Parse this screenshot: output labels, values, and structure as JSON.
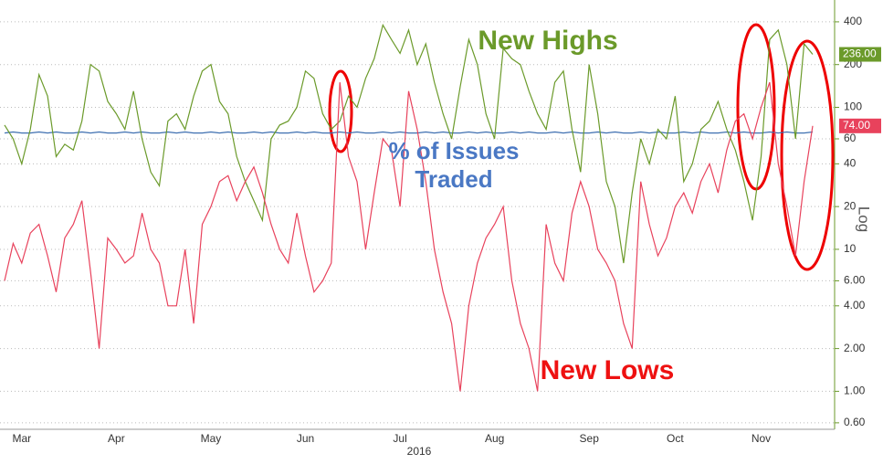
{
  "chart_data": {
    "type": "line",
    "x_label": "2016",
    "y_label": "Log",
    "log_scale": true,
    "grid": true,
    "categories": [
      null,
      null,
      "Mar",
      null,
      null,
      null,
      null,
      null,
      null,
      null,
      null,
      null,
      null,
      "Apr",
      null,
      null,
      null,
      null,
      null,
      null,
      null,
      null,
      null,
      null,
      "May",
      null,
      null,
      null,
      null,
      null,
      null,
      null,
      null,
      null,
      null,
      "Jun",
      null,
      null,
      null,
      null,
      null,
      null,
      null,
      null,
      null,
      null,
      "Jul",
      null,
      null,
      null,
      null,
      null,
      null,
      null,
      null,
      null,
      null,
      "Aug",
      null,
      null,
      null,
      null,
      null,
      null,
      null,
      null,
      null,
      null,
      "Sep",
      null,
      null,
      null,
      null,
      null,
      null,
      null,
      null,
      null,
      "Oct",
      null,
      null,
      null,
      null,
      null,
      null,
      null,
      null,
      null,
      "Nov",
      null,
      null,
      null,
      null,
      null,
      null
    ],
    "series": [
      {
        "name": "New Highs",
        "color": "#6b9a2a",
        "last_label": "236.00",
        "values": [
          75,
          60,
          40,
          70,
          170,
          120,
          45,
          55,
          50,
          80,
          200,
          180,
          110,
          90,
          70,
          130,
          60,
          35,
          28,
          80,
          90,
          70,
          120,
          180,
          200,
          110,
          90,
          45,
          30,
          22,
          16,
          60,
          75,
          80,
          100,
          180,
          160,
          90,
          70,
          80,
          120,
          100,
          160,
          220,
          380,
          300,
          240,
          350,
          200,
          280,
          150,
          90,
          60,
          140,
          300,
          200,
          90,
          60,
          260,
          220,
          200,
          130,
          90,
          70,
          150,
          180,
          70,
          35,
          200,
          90,
          30,
          20,
          8,
          25,
          60,
          40,
          70,
          60,
          120,
          30,
          40,
          70,
          80,
          110,
          70,
          50,
          30,
          16,
          45,
          300,
          350,
          200,
          60,
          280,
          236
        ]
      },
      {
        "name": "New Lows",
        "color": "#e8425c",
        "last_label": "74.00",
        "values": [
          6,
          11,
          8,
          13,
          15,
          9,
          5,
          12,
          15,
          22,
          7,
          2,
          12,
          10,
          8,
          9,
          18,
          10,
          8,
          4,
          4,
          10,
          3,
          15,
          20,
          30,
          33,
          22,
          30,
          38,
          25,
          15,
          10,
          8,
          18,
          9,
          5,
          6,
          8,
          150,
          45,
          30,
          10,
          25,
          60,
          50,
          20,
          130,
          70,
          30,
          10,
          5,
          3,
          1,
          4,
          8,
          12,
          15,
          20,
          6,
          3,
          2,
          1,
          15,
          8,
          6,
          18,
          30,
          20,
          10,
          8,
          6,
          3,
          2,
          30,
          15,
          9,
          12,
          20,
          25,
          18,
          30,
          40,
          25,
          50,
          80,
          90,
          60,
          100,
          150,
          40,
          20,
          9,
          30,
          74
        ]
      },
      {
        "name": "% of Issues Traded",
        "color": "#3e6fb0",
        "values": [
          66,
          67,
          66,
          66,
          67,
          66,
          67,
          66,
          66,
          67,
          66,
          67,
          66,
          66,
          67,
          66,
          67,
          66,
          66,
          67,
          66,
          67,
          66,
          66,
          67,
          66,
          67,
          66,
          66,
          67,
          66,
          67,
          66,
          66,
          67,
          66,
          67,
          66,
          66,
          67,
          66,
          67,
          66,
          66,
          67,
          66,
          67,
          66,
          66,
          67,
          66,
          67,
          66,
          66,
          67,
          66,
          67,
          66,
          66,
          67,
          66,
          67,
          66,
          66,
          67,
          66,
          67,
          66,
          66,
          67,
          66,
          67,
          66,
          66,
          67,
          66,
          67,
          66,
          66,
          67,
          66,
          67,
          66,
          66,
          67,
          66,
          67,
          66,
          66,
          67,
          66,
          67,
          66,
          66,
          67
        ]
      }
    ],
    "ylim": [
      0.54,
      570
    ],
    "yticks": [
      {
        "value": 0.6,
        "label": "0.60"
      },
      {
        "value": 1,
        "label": "1.00"
      },
      {
        "value": 2,
        "label": "2.00"
      },
      {
        "value": 4,
        "label": "4.00"
      },
      {
        "value": 6,
        "label": "6.00"
      },
      10,
      20,
      40,
      60,
      100,
      200,
      400
    ]
  }
}
